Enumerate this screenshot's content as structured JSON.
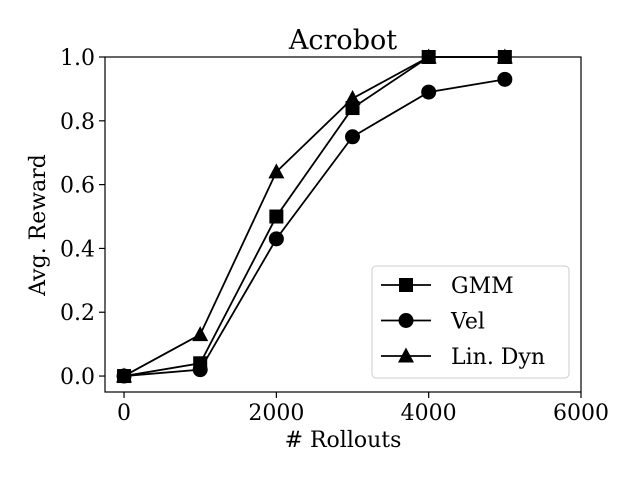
{
  "chart_data": {
    "type": "line",
    "title": "Acrobot",
    "xlabel": "# Rollouts",
    "ylabel": "Avg. Reward",
    "xlim": [
      -250,
      6000
    ],
    "ylim": [
      -0.05,
      1.0
    ],
    "xticks": [
      0,
      2000,
      4000,
      6000
    ],
    "yticks": [
      0.0,
      0.2,
      0.4,
      0.6,
      0.8,
      1.0
    ],
    "xtick_labels": [
      "0",
      "2000",
      "4000",
      "6000"
    ],
    "ytick_labels": [
      "0.0",
      "0.2",
      "0.4",
      "0.6",
      "0.8",
      "1.0"
    ],
    "grid": false,
    "legend_position": "lower-right",
    "line_color": "#000000",
    "series": [
      {
        "name": "GMM",
        "marker": "square",
        "x": [
          0,
          1000,
          2000,
          3000,
          4000,
          5000
        ],
        "y": [
          0.0,
          0.04,
          0.5,
          0.84,
          1.0,
          1.0
        ]
      },
      {
        "name": "Vel",
        "marker": "circle",
        "x": [
          0,
          1000,
          2000,
          3000,
          4000,
          5000
        ],
        "y": [
          0.0,
          0.02,
          0.43,
          0.75,
          0.89,
          0.93
        ]
      },
      {
        "name": "Lin. Dyn",
        "marker": "triangle",
        "x": [
          0,
          1000,
          2000,
          3000,
          4000,
          5000
        ],
        "y": [
          0.0,
          0.13,
          0.64,
          0.87,
          1.0,
          1.0
        ]
      }
    ]
  }
}
